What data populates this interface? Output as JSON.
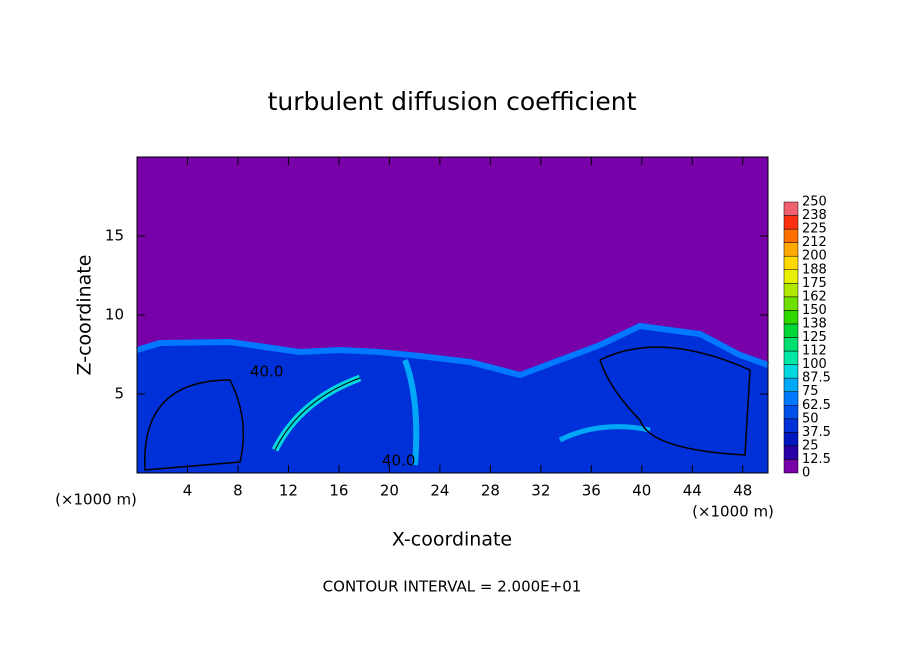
{
  "chart_data": {
    "type": "contour",
    "title": "turbulent diffusion coefficient",
    "xlabel": "X-coordinate",
    "ylabel": "Z-coordinate",
    "xunit": "(×1000 m)",
    "yunit": "(×1000 m)",
    "footer": "CONTOUR INTERVAL = 2.000E+01",
    "contour_label": {
      "value": 40,
      "label": "40.0"
    },
    "xlim": [
      0,
      50
    ],
    "xticks": [
      4,
      8,
      12,
      16,
      20,
      24,
      28,
      32,
      36,
      40,
      44,
      48
    ],
    "ylim": [
      0,
      20
    ],
    "yticks": [
      5,
      10,
      15
    ],
    "colorbar": {
      "levels": [
        0,
        12.5,
        25,
        37.5,
        50,
        62.5,
        75,
        87.5,
        100,
        112,
        125,
        138,
        150,
        162,
        175,
        188,
        200,
        212,
        225,
        238,
        250
      ],
      "colors": [
        "#7800a8",
        "#2800a8",
        "#0018c0",
        "#0030d8",
        "#0050ec",
        "#0078ff",
        "#00a8f8",
        "#00d8e0",
        "#00e8a8",
        "#00e070",
        "#00d838",
        "#30d800",
        "#70e000",
        "#b0e800",
        "#e8f000",
        "#ffd800",
        "#ffa800",
        "#ff7000",
        "#ff3010",
        "#f06070"
      ]
    }
  }
}
